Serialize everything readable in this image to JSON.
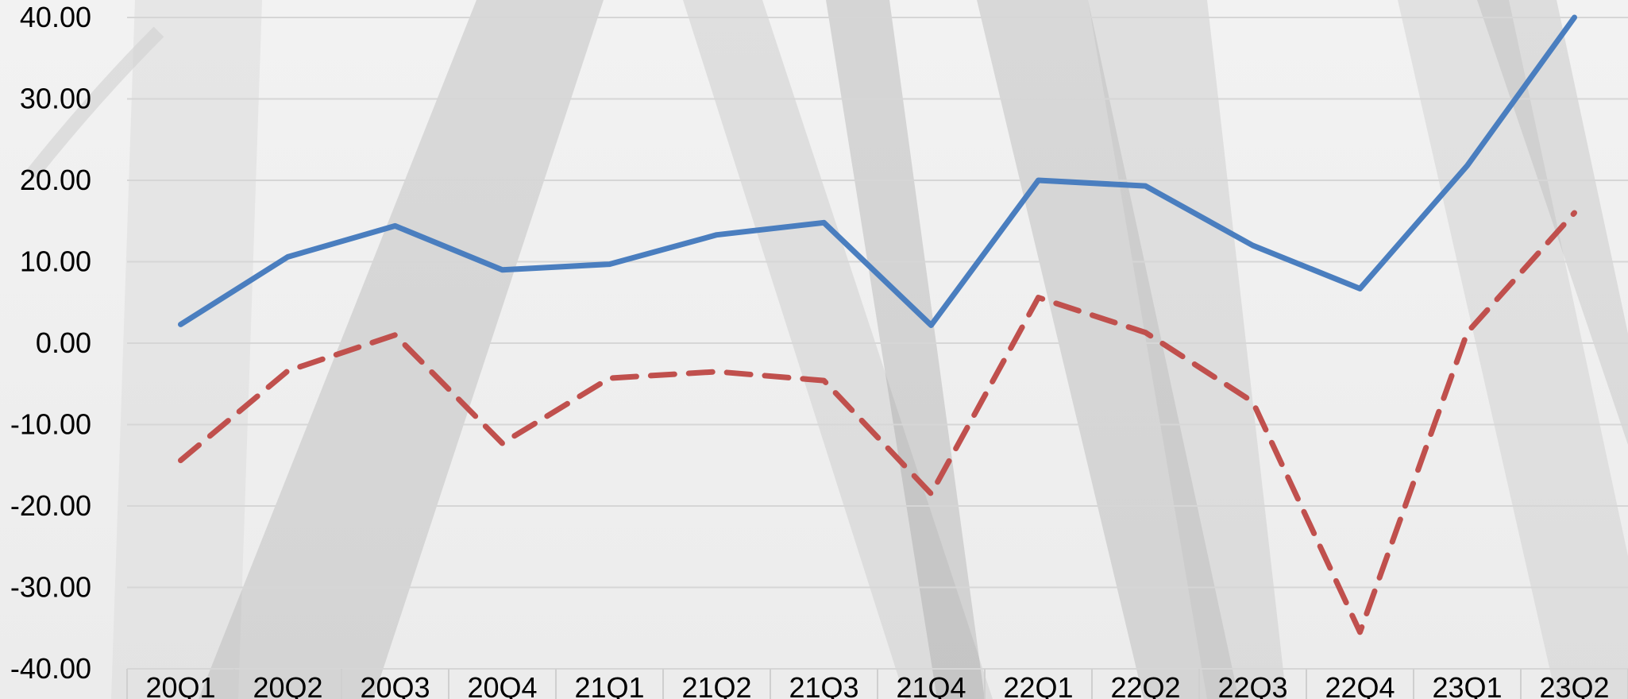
{
  "chart_data": {
    "type": "line",
    "title": "",
    "xlabel": "",
    "ylabel": "",
    "ylim": [
      -40,
      40
    ],
    "ytick_step": 10,
    "ytick_format_decimals": 2,
    "grid": true,
    "categories": [
      "20Q1",
      "20Q2",
      "20Q3",
      "20Q4",
      "21Q1",
      "21Q2",
      "21Q3",
      "21Q4",
      "22Q1",
      "22Q2",
      "22Q3",
      "22Q4",
      "23Q1",
      "23Q2"
    ],
    "series": [
      {
        "color": "#4a7ebf",
        "style": "solid",
        "values": [
          2.3,
          10.6,
          14.4,
          9.0,
          9.7,
          13.3,
          14.8,
          2.2,
          20.0,
          19.3,
          12.0,
          6.7,
          21.8,
          40.0
        ]
      },
      {
        "color": "#c0504d",
        "style": "dashed",
        "values": [
          -14.4,
          -3.4,
          1.0,
          -12.3,
          -4.3,
          -3.5,
          -4.6,
          -18.5,
          5.6,
          1.3,
          -7.2,
          -35.5,
          1.3,
          16.0
        ]
      }
    ]
  }
}
